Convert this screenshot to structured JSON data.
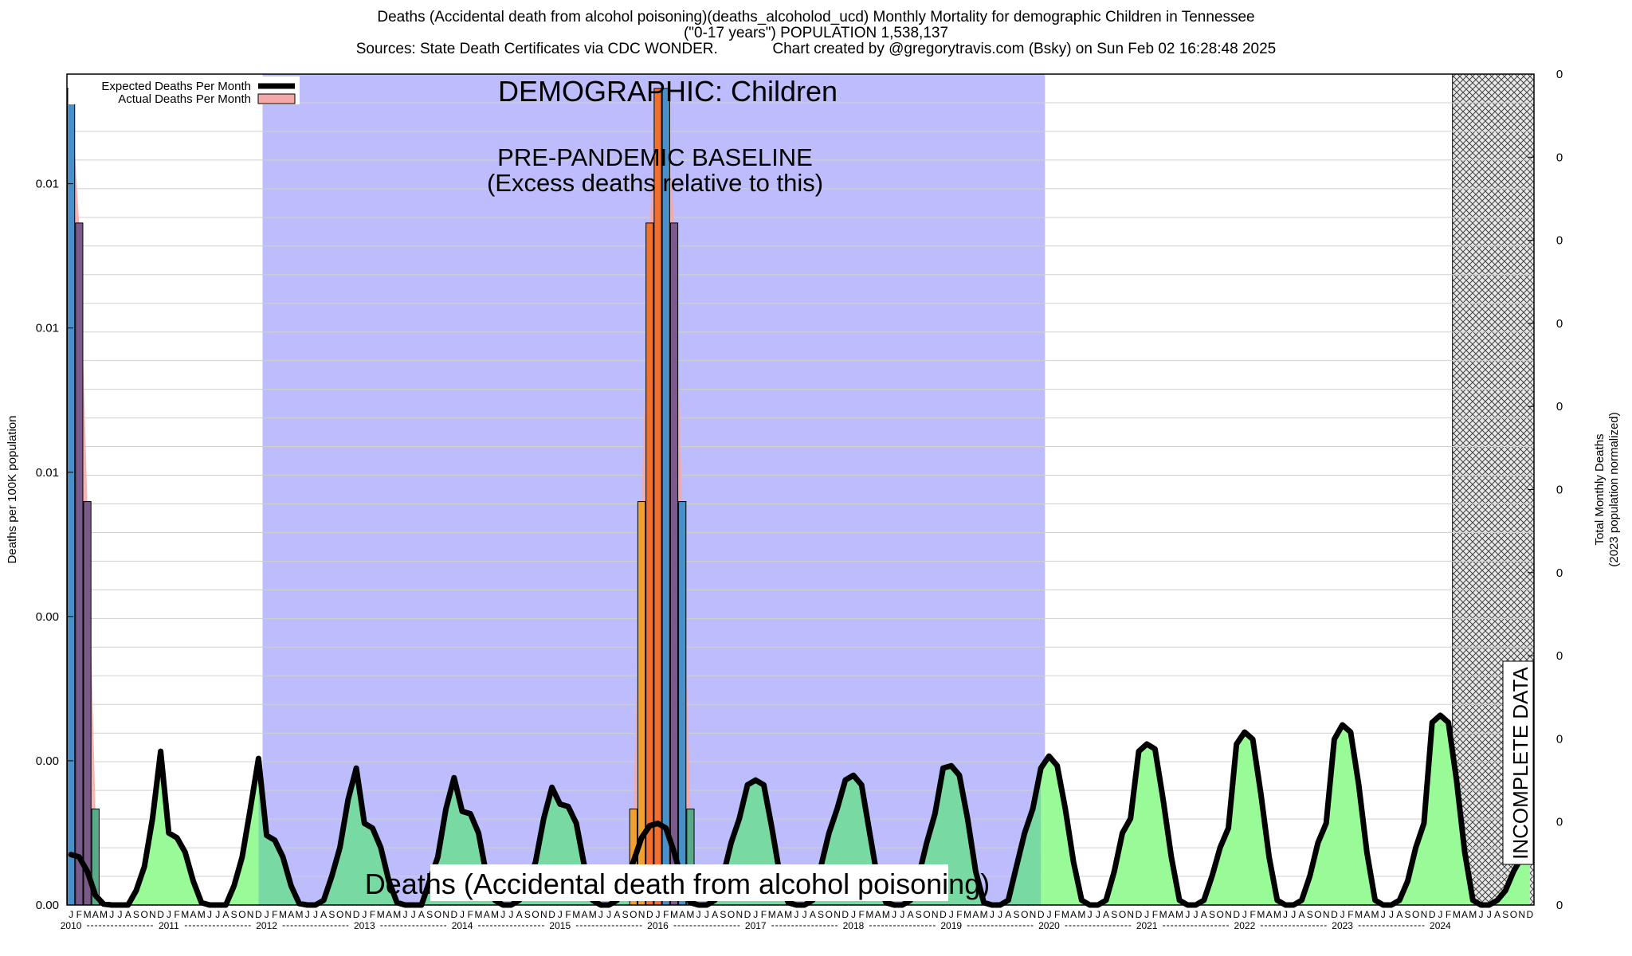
{
  "header": {
    "title_line1": "Deaths (Accidental death from alcohol poisoning)(deaths_alcoholod_ucd) Monthly Mortality for demographic Children in Tennessee",
    "title_line2": "(\"0-17 years\") POPULATION 1,538,137",
    "title_line3": "Sources: State Death Certificates via CDC WONDER.             Chart created by @gregorytravis.com (Bsky) on Sun Feb 02 16:28:48 2025"
  },
  "chart_data": {
    "type": "bar",
    "ylabel_left": "Deaths per 100K population",
    "ylabel_right_line1": "Total Monthly Deaths",
    "ylabel_right_line2": "(2023 population normalized)",
    "left_tick_labels": [
      "0.00",
      "0.00",
      "0.00",
      "0.01",
      "0.01",
      "0.01"
    ],
    "right_tick_labels": [
      "0",
      "0",
      "0",
      "0",
      "0",
      "0",
      "0",
      "0",
      "0",
      "0",
      "0"
    ],
    "month_letters": [
      "J",
      "F",
      "M",
      "A",
      "M",
      "J",
      "J",
      "A",
      "S",
      "O",
      "N",
      "D"
    ],
    "years": [
      "2010",
      "2011",
      "2012",
      "2013",
      "2014",
      "2015",
      "2016",
      "2017",
      "2018",
      "2019",
      "2020",
      "2021",
      "2022",
      "2023",
      "2024"
    ],
    "legend": [
      {
        "label": "Expected Deaths Per Month",
        "color": "#000000"
      },
      {
        "label": "Actual Deaths Per Month",
        "color": "#f4a8a8"
      }
    ],
    "annotations": {
      "demographic": "DEMOGRAPHIC: Children",
      "baseline_line1": "PRE-PANDEMIC BASELINE",
      "baseline_line2": "(Excess deaths relative to this)",
      "incomplete": "INCOMPLETE DATA",
      "bottom_label": "Deaths (Accidental death from alcohol poisoning)"
    },
    "baseline_period": {
      "start": "2012-01",
      "end": "2019-12"
    },
    "incomplete_period": {
      "start": "2024-03",
      "end": "2024-12"
    },
    "ylim": [
      0,
      0.0173
    ],
    "actual_bars": [
      {
        "month": "2010-01",
        "value": 0.017,
        "color": "#4a90c8"
      },
      {
        "month": "2010-02",
        "value": 0.0142,
        "color": "#7a5a8a"
      },
      {
        "month": "2010-03",
        "value": 0.0084,
        "color": "#7a5a8a"
      },
      {
        "month": "2010-04",
        "value": 0.002,
        "color": "#5aaa8a"
      },
      {
        "month": "2015-10",
        "value": 0.002,
        "color": "#f0a030"
      },
      {
        "month": "2015-11",
        "value": 0.0084,
        "color": "#f0a030"
      },
      {
        "month": "2015-12",
        "value": 0.0142,
        "color": "#f07030"
      },
      {
        "month": "2016-01",
        "value": 0.017,
        "color": "#f07030"
      },
      {
        "month": "2016-02",
        "value": 0.017,
        "color": "#4a90c8"
      },
      {
        "month": "2016-03",
        "value": 0.0142,
        "color": "#7a5a8a"
      },
      {
        "month": "2016-04",
        "value": 0.0084,
        "color": "#4a90c8"
      },
      {
        "month": "2016-05",
        "value": 0.002,
        "color": "#5aaa8a"
      }
    ],
    "expected_series": {
      "name": "Expected Deaths Per Month",
      "start": "2010-01",
      "values": [
        0.00105,
        0.001,
        0.0007,
        0.0002,
        2e-05,
        0.0,
        0.0,
        0.0,
        0.0003,
        0.0008,
        0.0018,
        0.0032,
        0.0015,
        0.0014,
        0.0011,
        0.0005,
        5e-05,
        0.0,
        0.0,
        0.0,
        0.0004,
        0.001,
        0.002,
        0.00305,
        0.00145,
        0.00135,
        0.001,
        0.0004,
        3e-05,
        0.0,
        0.0,
        0.0001,
        0.0006,
        0.0012,
        0.0022,
        0.00285,
        0.0017,
        0.0016,
        0.0012,
        0.0005,
        5e-05,
        0.0,
        0.0,
        0.0,
        0.0005,
        0.001,
        0.002,
        0.00265,
        0.00195,
        0.0019,
        0.0015,
        0.0006,
        0.0001,
        0.0,
        0.0,
        0.0001,
        0.0004,
        0.0009,
        0.0018,
        0.00245,
        0.0021,
        0.00205,
        0.0017,
        0.0008,
        0.0001,
        0.0,
        0.0,
        0.0001,
        0.0004,
        0.0009,
        0.0014,
        0.00165,
        0.0017,
        0.0016,
        0.0011,
        0.0005,
        5e-05,
        0.0,
        0.0,
        0.0001,
        0.0006,
        0.0013,
        0.0018,
        0.0025,
        0.0026,
        0.0025,
        0.0016,
        0.0006,
        5e-05,
        0.0,
        0.0,
        0.0001,
        0.0008,
        0.0015,
        0.002,
        0.0026,
        0.0027,
        0.0025,
        0.0015,
        0.0005,
        5e-05,
        0.0,
        0.0,
        0.0001,
        0.0006,
        0.0013,
        0.0019,
        0.00285,
        0.0029,
        0.0027,
        0.0018,
        0.0007,
        5e-05,
        0.0,
        0.0,
        0.0001,
        0.0008,
        0.0015,
        0.002,
        0.00285,
        0.0031,
        0.0029,
        0.002,
        0.0009,
        0.0001,
        0.0,
        0.0,
        0.0001,
        0.0007,
        0.0015,
        0.0018,
        0.0032,
        0.00335,
        0.00325,
        0.0022,
        0.001,
        0.0001,
        0.0,
        0.0,
        0.0001,
        0.0006,
        0.0012,
        0.0016,
        0.00335,
        0.0036,
        0.00345,
        0.0023,
        0.001,
        0.0001,
        0.0,
        0.0,
        0.0001,
        0.0006,
        0.0013,
        0.0017,
        0.00345,
        0.00375,
        0.0036,
        0.0025,
        0.0011,
        0.0001,
        0.0,
        0.0,
        0.0001,
        0.0005,
        0.0012,
        0.0017,
        0.0038,
        0.00395,
        0.0038,
        0.0026,
        0.0011,
        0.0001,
        0.0,
        0.0,
        0.0001,
        0.0003,
        0.0007,
        0.001,
        0.0014
      ]
    },
    "colors": {
      "baseline_band": "#bdbdfe",
      "expected_fill": "#99fb98",
      "expected_fill_in_baseline": "#79d9a3",
      "expected_line": "#000000",
      "actual_spike_fill": "#f4a8a8",
      "grid": "#d0d0d0"
    }
  }
}
